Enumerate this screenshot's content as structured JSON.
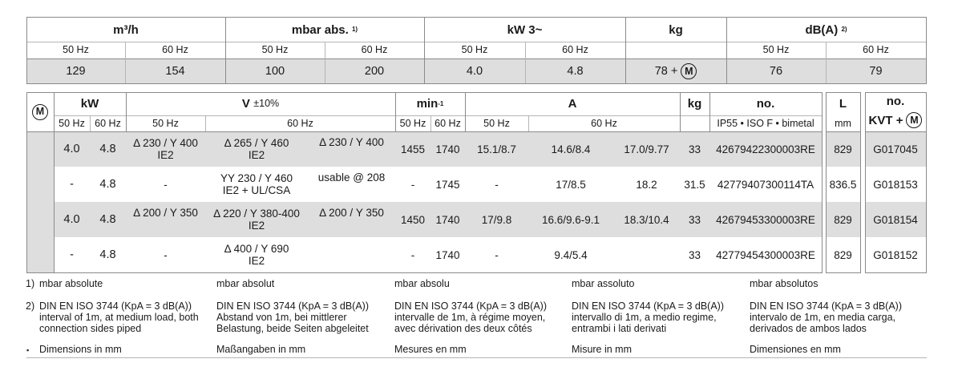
{
  "top_table": {
    "headers": [
      {
        "label": "m³/h",
        "sup": ""
      },
      {
        "label": "mbar abs.",
        "sup": "1)"
      },
      {
        "label": "kW 3~",
        "sup": ""
      },
      {
        "label": "kg",
        "sup": ""
      },
      {
        "label": "dB(A)",
        "sup": "2)"
      }
    ],
    "subheaders": [
      "50 Hz",
      "60 Hz",
      "50 Hz",
      "60 Hz",
      "50 Hz",
      "60 Hz",
      "50 Hz",
      "60 Hz"
    ],
    "values": [
      "129",
      "154",
      "100",
      "200",
      "4.0",
      "4.8",
      "76",
      "79"
    ],
    "kg_value": "78 +",
    "motor_symbol": "M"
  },
  "motor_table": {
    "motor_symbol": "M",
    "headers": {
      "kw": "kW",
      "v": "V",
      "v_tol": "±10%",
      "min": "min",
      "min_sup": "-1",
      "a": "A",
      "kg": "kg",
      "no": "no.",
      "l": "L",
      "kvt_no": "no.",
      "kvt": "KVT +"
    },
    "subheaders": {
      "kw50": "50 Hz",
      "kw60": "60 Hz",
      "v50": "50 Hz",
      "v60": "60 Hz",
      "min50": "50 Hz",
      "min60": "60 Hz",
      "a50": "50 Hz",
      "a60": "60 Hz",
      "no_sub": "IP55 • ISO F • bimetal",
      "l_sub": "mm"
    },
    "rows": [
      {
        "kw50": "4.0",
        "kw60": "4.8",
        "v50": "Δ 230 / Y 400",
        "v50b": "IE2",
        "v60a": "Δ 265 / Y 460",
        "v60ab": "IE2",
        "v60b": "Δ 230 / Y 400",
        "min50": "1455",
        "min60": "1740",
        "a50": "15.1/8.7",
        "a60a": "14.6/8.4",
        "a60b": "17.0/9.77",
        "kg": "33",
        "no": "42679422300003RE",
        "l": "829",
        "kvt": "G017045"
      },
      {
        "kw50": "-",
        "kw60": "4.8",
        "v50": "-",
        "v50b": "",
        "v60a": "YY 230 / Y 460",
        "v60ab": "IE2 + UL/CSA",
        "v60b": "usable @ 208",
        "min50": "-",
        "min60": "1745",
        "a50": "-",
        "a60a": "17/8.5",
        "a60b": "18.2",
        "kg": "31.5",
        "no": "42779407300114TA",
        "l": "836.5",
        "kvt": "G018153"
      },
      {
        "kw50": "4.0",
        "kw60": "4.8",
        "v50": "Δ 200 / Y 350",
        "v50b": "",
        "v60a": "Δ 220 / Y 380-400",
        "v60ab": "IE2",
        "v60b": "Δ 200 / Y 350",
        "min50": "1450",
        "min60": "1740",
        "a50": "17/9.8",
        "a60a": "16.6/9.6-9.1",
        "a60b": "18.3/10.4",
        "kg": "33",
        "no": "42679453300003RE",
        "l": "829",
        "kvt": "G018154"
      },
      {
        "kw50": "-",
        "kw60": "4.8",
        "v50": "-",
        "v50b": "",
        "v60a": "Δ 400 / Y 690",
        "v60ab": "IE2",
        "v60b": "",
        "min50": "-",
        "min60": "1740",
        "a50": "-",
        "a60a": "9.4/5.4",
        "a60b": "",
        "kg": "33",
        "no": "42779454300003RE",
        "l": "829",
        "kvt": "G018152"
      }
    ]
  },
  "footnotes": {
    "markers": [
      "1)",
      "2)",
      "▪"
    ],
    "mbar": [
      "mbar absolute",
      "mbar absolut",
      "mbar absolu",
      "mbar assoluto",
      "mbar absolutos"
    ],
    "din": [
      [
        "DIN EN ISO 3744 (KpA = 3 dB(A))",
        "interval of 1m, at medium load, both",
        "connection sides piped"
      ],
      [
        "DIN EN ISO 3744 (KpA = 3 dB(A))",
        "Abstand von 1m, bei mittlerer",
        "Belastung, beide Seiten abgeleitet"
      ],
      [
        "DIN EN ISO 3744 (KpA = 3 dB(A))",
        "intervalle de 1m, à régime moyen,",
        "avec dérivation des deux côtés"
      ],
      [
        "DIN EN ISO 3744 (KpA = 3 dB(A))",
        "intervallo di 1m, a medio regime,",
        "entrambi i lati derivati"
      ],
      [
        "DIN EN ISO 3744 (KpA = 3 dB(A))",
        "intervalo de 1m, en media carga,",
        "derivados de ambos lados"
      ]
    ],
    "dims": [
      "Dimensions in mm",
      "Maßangaben in mm",
      "Mesures en mm",
      "Misure in mm",
      "Dimensiones en mm"
    ]
  }
}
